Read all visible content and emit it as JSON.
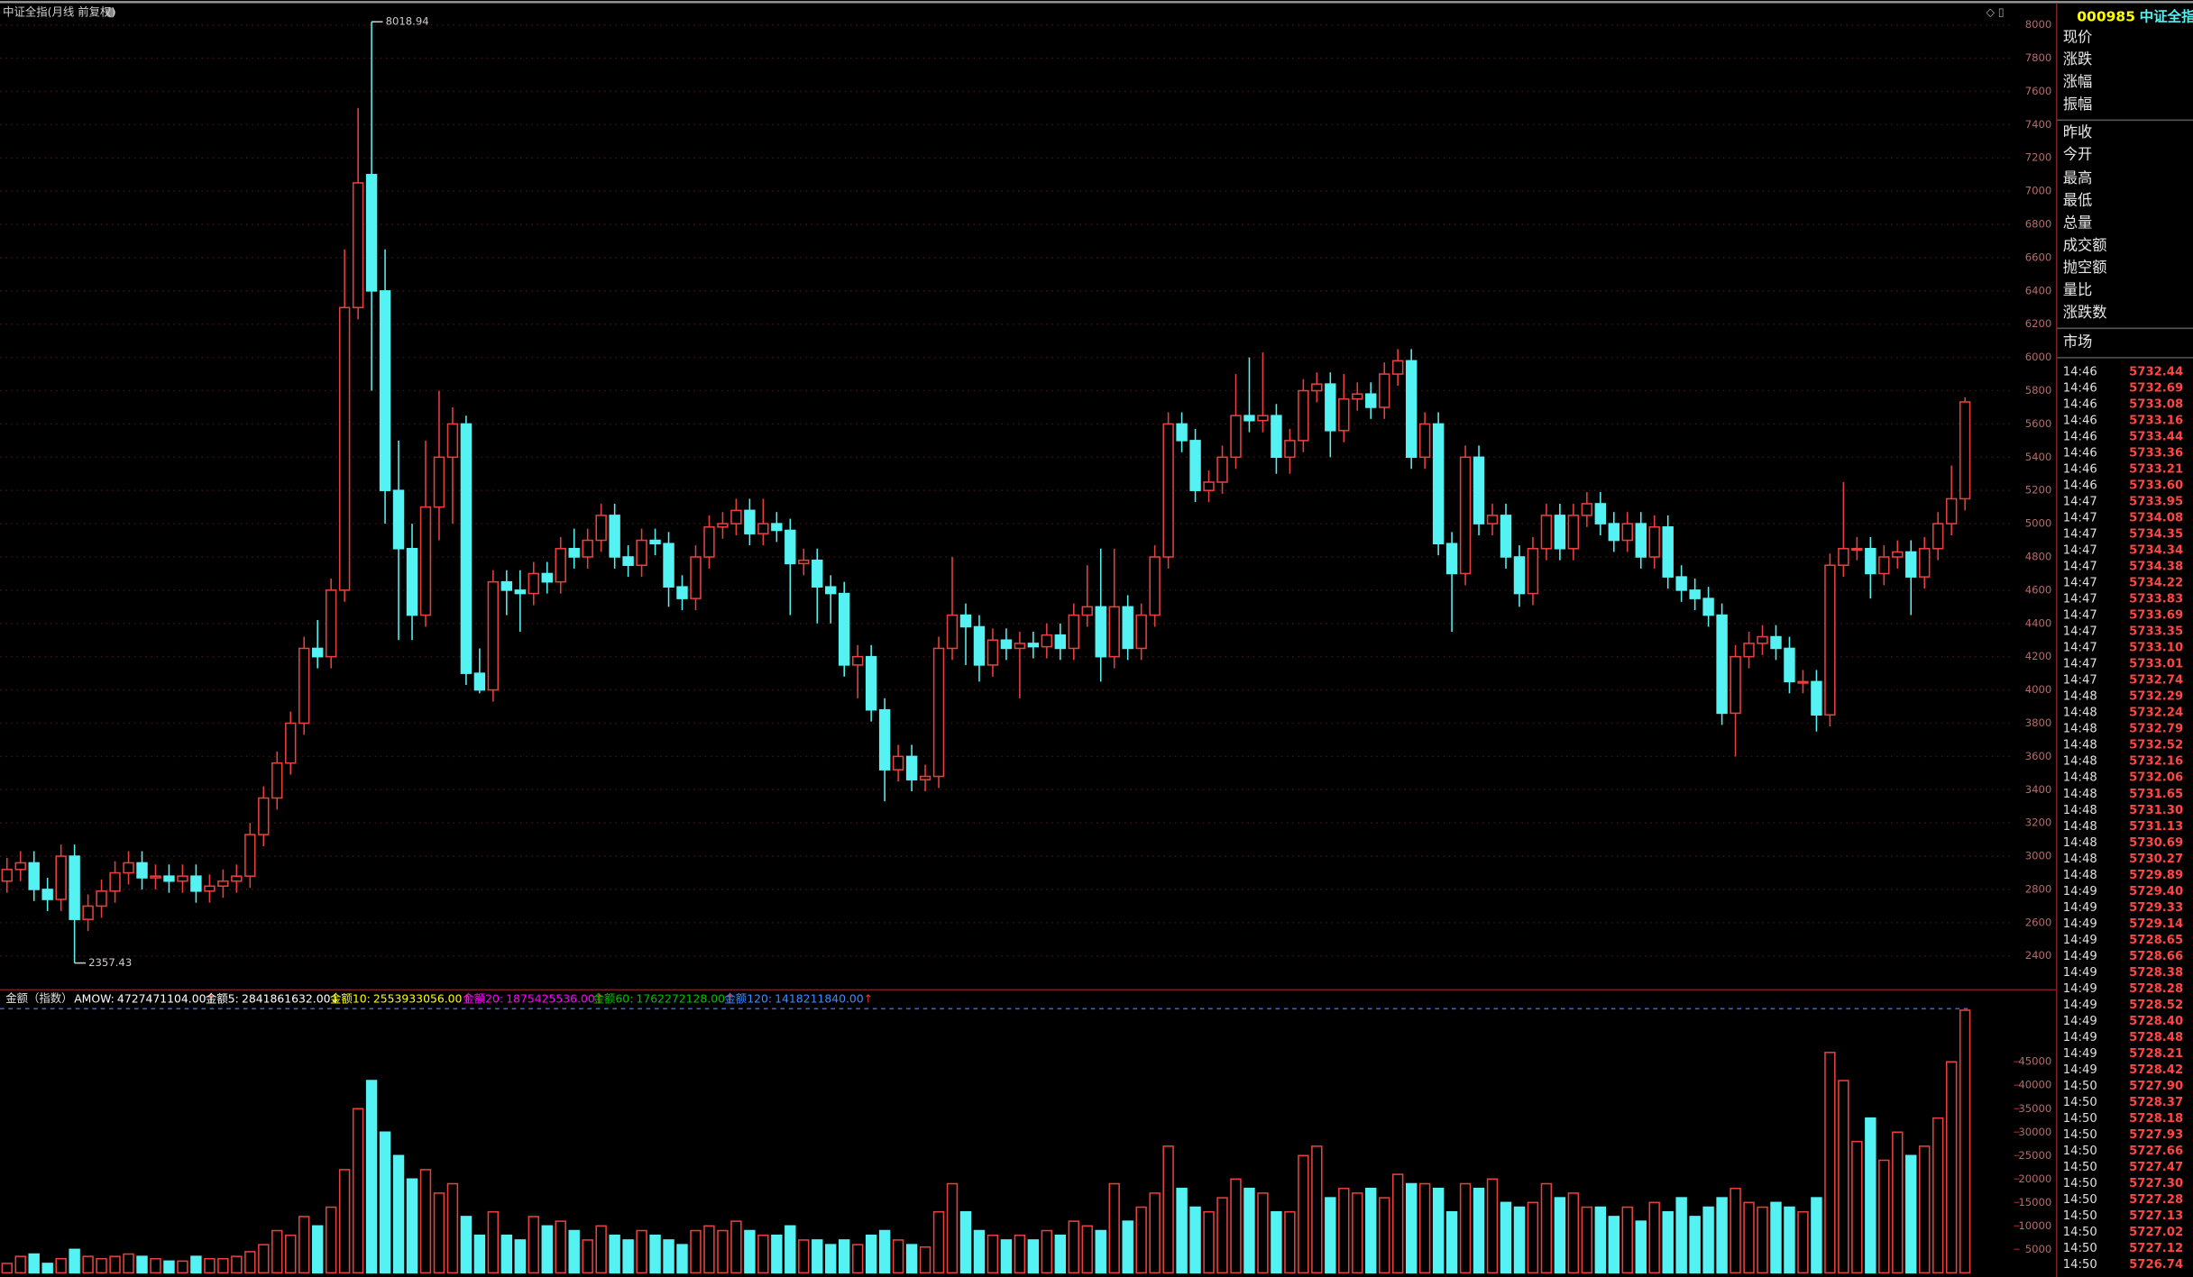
{
  "chart_data": [
    {
      "type": "candlestick",
      "title": "中证全指(月线 前复权)",
      "up_color": "#e8403c",
      "down_color": "#54f2f2",
      "grid": true,
      "grid_color": "#3a1414",
      "ylim": [
        2200,
        8150
      ],
      "yticks": [
        2400,
        2600,
        2800,
        3000,
        3200,
        3400,
        3600,
        3800,
        4000,
        4200,
        4400,
        4600,
        4800,
        5000,
        5200,
        5400,
        5600,
        5800,
        6000,
        6200,
        6400,
        6600,
        6800,
        7000,
        7200,
        7400,
        7600,
        7800,
        8000
      ],
      "open": [
        2850,
        2920,
        2960,
        2800,
        2740,
        3000,
        2620,
        2700,
        2790,
        2900,
        2960,
        2870,
        2880,
        2850,
        2880,
        2790,
        2820,
        2850,
        2880,
        3130,
        3350,
        3560,
        3800,
        4250,
        4200,
        4600,
        6300,
        7100,
        6400,
        5200,
        4850,
        4450,
        5100,
        5400,
        5600,
        4100,
        4000,
        4650,
        4600,
        4580,
        4700,
        4650,
        4850,
        4800,
        4900,
        5050,
        4800,
        4750,
        4900,
        4880,
        4620,
        4550,
        4800,
        4980,
        5000,
        5080,
        4940,
        5000,
        4960,
        4760,
        4780,
        4620,
        4580,
        4150,
        4200,
        3880,
        3520,
        3600,
        3460,
        3480,
        4250,
        4450,
        4380,
        4150,
        4300,
        4250,
        4280,
        4260,
        4330,
        4250,
        4450,
        4500,
        4200,
        4500,
        4250,
        4450,
        4800,
        5600,
        5500,
        5200,
        5250,
        5400,
        5650,
        5620,
        5650,
        5400,
        5500,
        5800,
        5840,
        5560,
        5750,
        5780,
        5700,
        5900,
        5980,
        5400,
        5600,
        4880,
        4700,
        5400,
        5000,
        5050,
        4800,
        4580,
        4850,
        5050,
        4850,
        5050,
        5120,
        5000,
        4900,
        5000,
        4800,
        4980,
        4680,
        4600,
        4550,
        4450,
        3860,
        4200,
        4280,
        4320,
        4250,
        4050,
        4050,
        3850,
        4750,
        4850,
        4850,
        4700,
        4800,
        4830,
        4680,
        4850,
        5000,
        5150
      ],
      "high": [
        2990,
        3030,
        3030,
        2870,
        3070,
        3070,
        2770,
        2860,
        2970,
        3030,
        3030,
        2950,
        2950,
        2950,
        2950,
        2890,
        2920,
        2950,
        3200,
        3420,
        3630,
        3870,
        4320,
        4420,
        4670,
        6650,
        7500,
        8018.94,
        6650,
        5500,
        5000,
        5500,
        5800,
        5700,
        5650,
        4250,
        4720,
        4720,
        4720,
        4770,
        4770,
        4920,
        4970,
        4970,
        5120,
        5120,
        4870,
        4970,
        4970,
        4950,
        4690,
        4870,
        5050,
        5070,
        5150,
        5150,
        5150,
        5070,
        5030,
        4850,
        4850,
        4690,
        4650,
        4270,
        4270,
        3950,
        3670,
        3670,
        3550,
        4320,
        4800,
        4520,
        4450,
        4370,
        4370,
        4350,
        4350,
        4400,
        4400,
        4520,
        4750,
        4850,
        4850,
        4570,
        4520,
        4870,
        5670,
        5670,
        5570,
        5320,
        5470,
        5900,
        6000,
        6030,
        5720,
        5570,
        5870,
        5910,
        5910,
        5900,
        5850,
        5850,
        5970,
        6050,
        6050,
        5670,
        5670,
        4950,
        5470,
        5470,
        5120,
        5120,
        4870,
        4920,
        5120,
        5120,
        5120,
        5190,
        5190,
        5070,
        5070,
        5070,
        5050,
        5050,
        4750,
        4670,
        4620,
        4520,
        4270,
        4350,
        4390,
        4390,
        4320,
        4120,
        4120,
        4820,
        5250,
        4920,
        4920,
        4870,
        4900,
        4900,
        4920,
        5070,
        5350,
        5760
      ],
      "low": [
        2780,
        2850,
        2730,
        2670,
        2670,
        2357.43,
        2550,
        2630,
        2720,
        2830,
        2800,
        2800,
        2780,
        2780,
        2720,
        2720,
        2750,
        2780,
        2810,
        3060,
        3280,
        3490,
        3730,
        4130,
        4130,
        4530,
        6230,
        5800,
        5000,
        4300,
        4300,
        4380,
        4900,
        5000,
        4030,
        3980,
        3930,
        4450,
        4350,
        4510,
        4580,
        4580,
        4730,
        4730,
        4830,
        4730,
        4680,
        4680,
        4810,
        4500,
        4480,
        4480,
        4730,
        4910,
        4930,
        4870,
        4870,
        4890,
        4450,
        4690,
        4400,
        4400,
        4080,
        3950,
        3810,
        3330,
        3450,
        3390,
        3390,
        3410,
        4180,
        4150,
        4050,
        4080,
        4180,
        3950,
        4190,
        4190,
        4180,
        4180,
        4380,
        4050,
        4130,
        4180,
        4180,
        4380,
        4730,
        5430,
        5130,
        5130,
        5180,
        5330,
        5550,
        5550,
        5300,
        5300,
        5430,
        5730,
        5400,
        5490,
        5680,
        5630,
        5630,
        5830,
        5330,
        5330,
        4810,
        4350,
        4630,
        4930,
        4930,
        4730,
        4500,
        4510,
        4780,
        4780,
        4780,
        4980,
        4930,
        4830,
        4830,
        4730,
        4730,
        4610,
        4530,
        4480,
        4380,
        3790,
        3600,
        4130,
        4210,
        4180,
        3980,
        3980,
        3750,
        3780,
        4680,
        4780,
        4550,
        4630,
        4730,
        4450,
        4610,
        4780,
        4930,
        5080
      ],
      "close": [
        2920,
        2960,
        2800,
        2740,
        3000,
        2620,
        2700,
        2790,
        2900,
        2960,
        2870,
        2880,
        2850,
        2880,
        2790,
        2820,
        2850,
        2880,
        3130,
        3350,
        3560,
        3800,
        4250,
        4200,
        4600,
        6300,
        7050,
        6400,
        5200,
        4850,
        4450,
        5100,
        5400,
        5600,
        4100,
        4000,
        4650,
        4600,
        4580,
        4700,
        4650,
        4850,
        4800,
        4900,
        5050,
        4800,
        4750,
        4900,
        4880,
        4620,
        4550,
        4800,
        4980,
        5000,
        5080,
        4940,
        5000,
        4960,
        4760,
        4780,
        4620,
        4580,
        4150,
        4200,
        3880,
        3520,
        3600,
        3460,
        3480,
        4250,
        4450,
        4380,
        4150,
        4300,
        4250,
        4280,
        4260,
        4330,
        4250,
        4450,
        4500,
        4200,
        4500,
        4250,
        4450,
        4800,
        5600,
        5500,
        5200,
        5250,
        5400,
        5650,
        5620,
        5650,
        5400,
        5500,
        5800,
        5840,
        5560,
        5750,
        5780,
        5700,
        5900,
        5980,
        5400,
        5600,
        4880,
        4700,
        5400,
        5000,
        5050,
        4800,
        4580,
        4850,
        5050,
        4850,
        5050,
        5120,
        5000,
        4900,
        5000,
        4800,
        4980,
        4680,
        4600,
        4550,
        4450,
        3860,
        4200,
        4280,
        4320,
        4250,
        4050,
        4050,
        3850,
        4750,
        4850,
        4850,
        4700,
        4800,
        4830,
        4680,
        4850,
        5000,
        5150,
        5732.44
      ]
    },
    {
      "type": "bar",
      "title": "金额（指数）",
      "up_color": "#e8403c",
      "down_color": "#54f2f2",
      "ylim": [
        0,
        59300
      ],
      "yticks": [
        5000,
        10000,
        15000,
        20000,
        25000,
        30000,
        35000,
        40000,
        45000
      ],
      "values": [
        2000,
        3500,
        4000,
        2000,
        3000,
        5000,
        3500,
        3000,
        3500,
        4000,
        3500,
        3000,
        2500,
        2500,
        3500,
        3000,
        3000,
        3500,
        4500,
        6000,
        9000,
        8000,
        12000,
        10000,
        14000,
        22000,
        35000,
        41000,
        30000,
        25000,
        20000,
        22000,
        17000,
        19000,
        12000,
        8000,
        13000,
        8000,
        7000,
        12000,
        10000,
        11000,
        9000,
        7000,
        10000,
        8000,
        7000,
        9000,
        8000,
        7000,
        6000,
        9000,
        10000,
        9000,
        11000,
        9000,
        8000,
        8000,
        10000,
        7000,
        7000,
        6000,
        7000,
        6000,
        8000,
        9000,
        7000,
        6000,
        5500,
        13000,
        19000,
        13000,
        9000,
        8000,
        7000,
        8000,
        7000,
        9000,
        8000,
        11000,
        10000,
        9000,
        19000,
        11000,
        14000,
        17000,
        27000,
        18000,
        14000,
        13000,
        16000,
        20000,
        18000,
        17000,
        13000,
        13000,
        25000,
        27000,
        16000,
        18000,
        17000,
        18000,
        16000,
        21000,
        19000,
        19000,
        18000,
        13000,
        19000,
        18000,
        20000,
        15000,
        14000,
        15000,
        19000,
        16000,
        17000,
        14000,
        14000,
        12000,
        14000,
        11000,
        15000,
        13000,
        16000,
        12000,
        14000,
        16000,
        18000,
        15000,
        14000,
        15000,
        14000,
        13000,
        16000,
        47000,
        41000,
        28000,
        33000,
        24000,
        30000,
        25000,
        27000,
        33000,
        45000,
        56000
      ],
      "legend": [
        {
          "label": "AMOW:",
          "value": "4727471104.00",
          "arrow": "↑",
          "color": "#ffffff",
          "arrow_color": "#ff3030"
        },
        {
          "label": "金额5:",
          "value": "2841861632.00",
          "arrow": "↓",
          "color": "#ffffff",
          "arrow_color": "#ffffff"
        },
        {
          "label": "金额10:",
          "value": "2553933056.00",
          "arrow": "↑",
          "color": "#ffff00",
          "arrow_color": "#ff3030"
        },
        {
          "label": "金额20:",
          "value": "1875425536.00",
          "arrow": "↑",
          "color": "#ff00ff",
          "arrow_color": "#ff3030"
        },
        {
          "label": "金额60:",
          "value": "1762272128.00",
          "arrow": "↑",
          "color": "#00c000",
          "arrow_color": "#ff3030"
        },
        {
          "label": "金额120:",
          "value": "1418211840.00",
          "arrow": "↑",
          "color": "#3c8cff",
          "arrow_color": "#ff3030"
        }
      ]
    }
  ],
  "quote": {
    "code": "000985",
    "name": "中证全指",
    "fields": [
      "现价",
      "涨跌",
      "涨幅",
      "振幅",
      "昨收",
      "今开",
      "最高",
      "最低",
      "总量",
      "成交额",
      "抛空额",
      "量比",
      "涨跌数",
      "市场"
    ],
    "times": [
      "14:46",
      "14:46",
      "14:46",
      "14:46",
      "14:46",
      "14:46",
      "14:46",
      "14:46",
      "14:47",
      "14:47",
      "14:47",
      "14:47",
      "14:47",
      "14:47",
      "14:47",
      "14:47",
      "14:47",
      "14:47",
      "14:47",
      "14:47",
      "14:48",
      "14:48",
      "14:48",
      "14:48",
      "14:48",
      "14:48",
      "14:48",
      "14:48",
      "14:48",
      "14:48",
      "14:48",
      "14:48",
      "14:49",
      "14:49",
      "14:49",
      "14:49",
      "14:49",
      "14:49",
      "14:49",
      "14:49",
      "14:49",
      "14:49",
      "14:49",
      "14:49",
      "14:50",
      "14:50",
      "14:50",
      "14:50",
      "14:50",
      "14:50",
      "14:50",
      "14:50",
      "14:50",
      "14:50",
      "14:50",
      "14:50"
    ],
    "prices": [
      "5732.44",
      "5732.69",
      "5733.08",
      "5733.16",
      "5733.44",
      "5733.36",
      "5733.21",
      "5733.60",
      "5733.95",
      "5734.08",
      "5734.35",
      "5734.34",
      "5734.38",
      "5734.22",
      "5733.83",
      "5733.69",
      "5733.35",
      "5733.10",
      "5733.01",
      "5732.74",
      "5732.29",
      "5732.24",
      "5732.79",
      "5732.52",
      "5732.16",
      "5732.06",
      "5731.65",
      "5731.30",
      "5731.13",
      "5730.69",
      "5730.27",
      "5729.89",
      "5729.40",
      "5729.33",
      "5729.14",
      "5728.65",
      "5728.66",
      "5728.38",
      "5728.28",
      "5728.52",
      "5728.40",
      "5728.48",
      "5728.21",
      "5728.42",
      "5727.90",
      "5728.37",
      "5728.18",
      "5727.93",
      "5727.66",
      "5727.47",
      "5727.30",
      "5727.28",
      "5727.13",
      "5727.02",
      "5727.12",
      "5726.74"
    ]
  }
}
